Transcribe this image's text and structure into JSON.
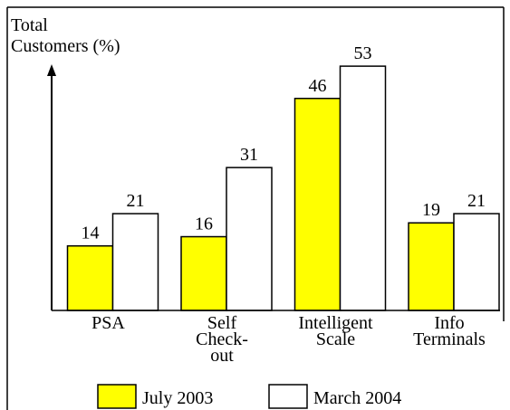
{
  "chart_data": {
    "type": "bar",
    "y_label": "Total Customers (%)",
    "categories": [
      "PSA",
      "Self Check-out",
      "Intelligent Scale",
      "Info Terminals"
    ],
    "series": [
      {
        "name": "July 2003",
        "color": "#ffff00",
        "values": [
          14,
          16,
          46,
          19
        ]
      },
      {
        "name": "March 2004",
        "color": "#ffffff",
        "values": [
          21,
          31,
          53,
          21
        ]
      }
    ],
    "ylim": [
      0,
      65
    ]
  }
}
